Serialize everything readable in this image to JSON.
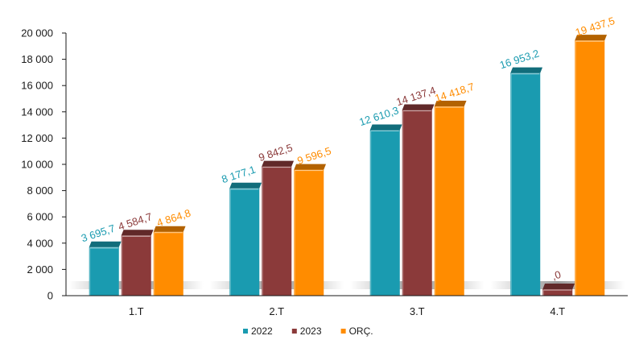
{
  "chart_data": {
    "type": "bar",
    "categories": [
      "1.T",
      "2.T",
      "3.T",
      "4.T"
    ],
    "series": [
      {
        "name": "2022",
        "color": "#1a9bb0",
        "values": [
          3695.7,
          8177.1,
          12610.3,
          16953.2
        ],
        "labels": [
          "3 695,7",
          "8 177,1",
          "12 610,3",
          "16 953,2"
        ]
      },
      {
        "name": "2023",
        "color": "#8b3a3a",
        "values": [
          4584.7,
          9842.5,
          14137.4,
          0
        ],
        "labels": [
          "4 584,7",
          "9 842,5",
          "14 137,4",
          ",0"
        ]
      },
      {
        "name": "ORÇ.",
        "color": "#ff8c00",
        "values": [
          4864.8,
          9596.5,
          14418.7,
          19437.5
        ],
        "labels": [
          "4 864,8",
          "9 596,5",
          "14 418,7",
          "19 437,5"
        ]
      }
    ],
    "yticks": [
      "0",
      "2 000",
      "4 000",
      "6 000",
      "8 000",
      "10 000",
      "12 000",
      "14 000",
      "16 000",
      "18 000",
      "20 000"
    ],
    "ylim": [
      0,
      20000
    ],
    "grid": false,
    "legend_position": "bottom"
  }
}
